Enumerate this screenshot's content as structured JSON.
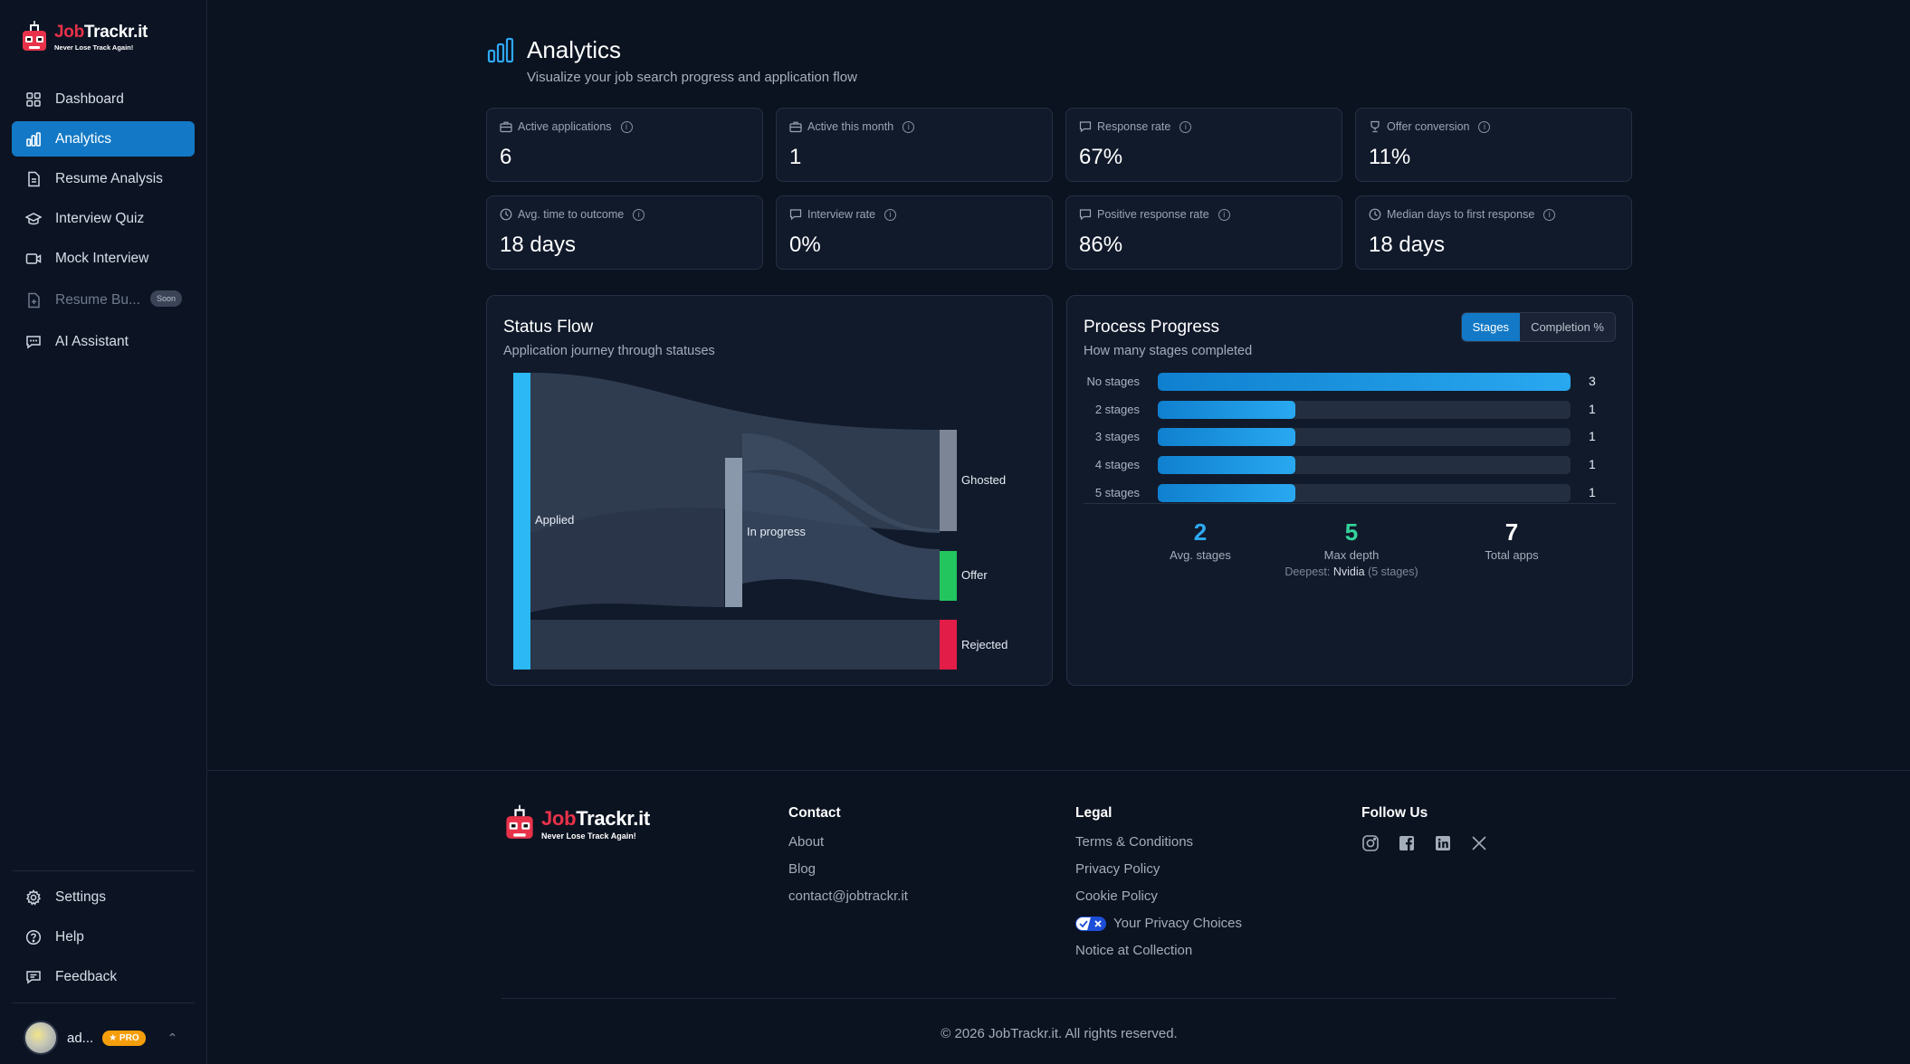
{
  "brand": {
    "name_red": "Job",
    "name_white": "Trackr.it",
    "tagline": "Never Lose Track Again!"
  },
  "sidebar": {
    "items": [
      {
        "label": "Dashboard",
        "icon": "grid-icon"
      },
      {
        "label": "Analytics",
        "icon": "bar-chart-icon"
      },
      {
        "label": "Resume Analysis",
        "icon": "document-icon"
      },
      {
        "label": "Interview Quiz",
        "icon": "graduation-cap-icon"
      },
      {
        "label": "Mock Interview",
        "icon": "video-icon"
      },
      {
        "label": "Resume Bu...",
        "icon": "document-plus-icon",
        "badge": "Soon"
      },
      {
        "label": "AI Assistant",
        "icon": "chat-icon"
      }
    ],
    "bottom": [
      {
        "label": "Settings",
        "icon": "gear-icon"
      },
      {
        "label": "Help",
        "icon": "help-circle-icon"
      },
      {
        "label": "Feedback",
        "icon": "chat-feedback-icon"
      }
    ],
    "user": {
      "name": "ad...",
      "badge": "★ PRO"
    }
  },
  "page": {
    "title": "Analytics",
    "subtitle": "Visualize your job search progress and application flow"
  },
  "stats": [
    {
      "label": "Active applications",
      "value": "6",
      "icon": "briefcase-icon"
    },
    {
      "label": "Active this month",
      "value": "1",
      "icon": "briefcase-icon"
    },
    {
      "label": "Response rate",
      "value": "67%",
      "icon": "chat-icon"
    },
    {
      "label": "Offer conversion",
      "value": "11%",
      "icon": "trophy-icon"
    },
    {
      "label": "Avg. time to outcome",
      "value": "18 days",
      "icon": "clock-icon"
    },
    {
      "label": "Interview rate",
      "value": "0%",
      "icon": "chat-icon"
    },
    {
      "label": "Positive response rate",
      "value": "86%",
      "icon": "chat-icon"
    },
    {
      "label": "Median days to first response",
      "value": "18 days",
      "icon": "clock-icon"
    }
  ],
  "status_flow": {
    "title": "Status Flow",
    "subtitle": "Application journey through statuses",
    "nodes": [
      {
        "label": "Applied",
        "color": "#2bb8f5"
      },
      {
        "label": "In progress",
        "color": "#8a98ab"
      },
      {
        "label": "Ghosted",
        "color": "#7c8595"
      },
      {
        "label": "Offer",
        "color": "#22c55e"
      },
      {
        "label": "Rejected",
        "color": "#e11d48"
      }
    ]
  },
  "process": {
    "title": "Process Progress",
    "subtitle": "How many stages completed",
    "toggle": [
      "Stages",
      "Completion %"
    ],
    "bars": [
      {
        "label": "No stages",
        "count": "3",
        "fraction": 1.0
      },
      {
        "label": "2 stages",
        "count": "1",
        "fraction": 0.333
      },
      {
        "label": "3 stages",
        "count": "1",
        "fraction": 0.333
      },
      {
        "label": "4 stages",
        "count": "1",
        "fraction": 0.333
      },
      {
        "label": "5 stages",
        "count": "1",
        "fraction": 0.333
      }
    ],
    "metrics": {
      "avg": {
        "value": "2",
        "caption": "Avg. stages",
        "color": "#2ea8f2"
      },
      "max": {
        "value": "5",
        "caption": "Max depth",
        "extra_prefix": "Deepest:",
        "extra_name": "Nvidia",
        "extra_suffix": "(5 stages)",
        "color": "#34d399"
      },
      "total": {
        "value": "7",
        "caption": "Total apps",
        "color": "#ffffff"
      }
    }
  },
  "footer": {
    "contact": {
      "heading": "Contact",
      "links": [
        "About",
        "Blog",
        "contact@jobtrackr.it"
      ]
    },
    "legal": {
      "heading": "Legal",
      "links": [
        "Terms & Conditions",
        "Privacy Policy",
        "Cookie Policy",
        "Your Privacy Choices",
        "Notice at Collection"
      ]
    },
    "follow": {
      "heading": "Follow Us",
      "icons": [
        "instagram-icon",
        "facebook-icon",
        "linkedin-icon",
        "x-icon"
      ]
    },
    "copyright": "© 2026 JobTrackr.it. All rights reserved."
  }
}
